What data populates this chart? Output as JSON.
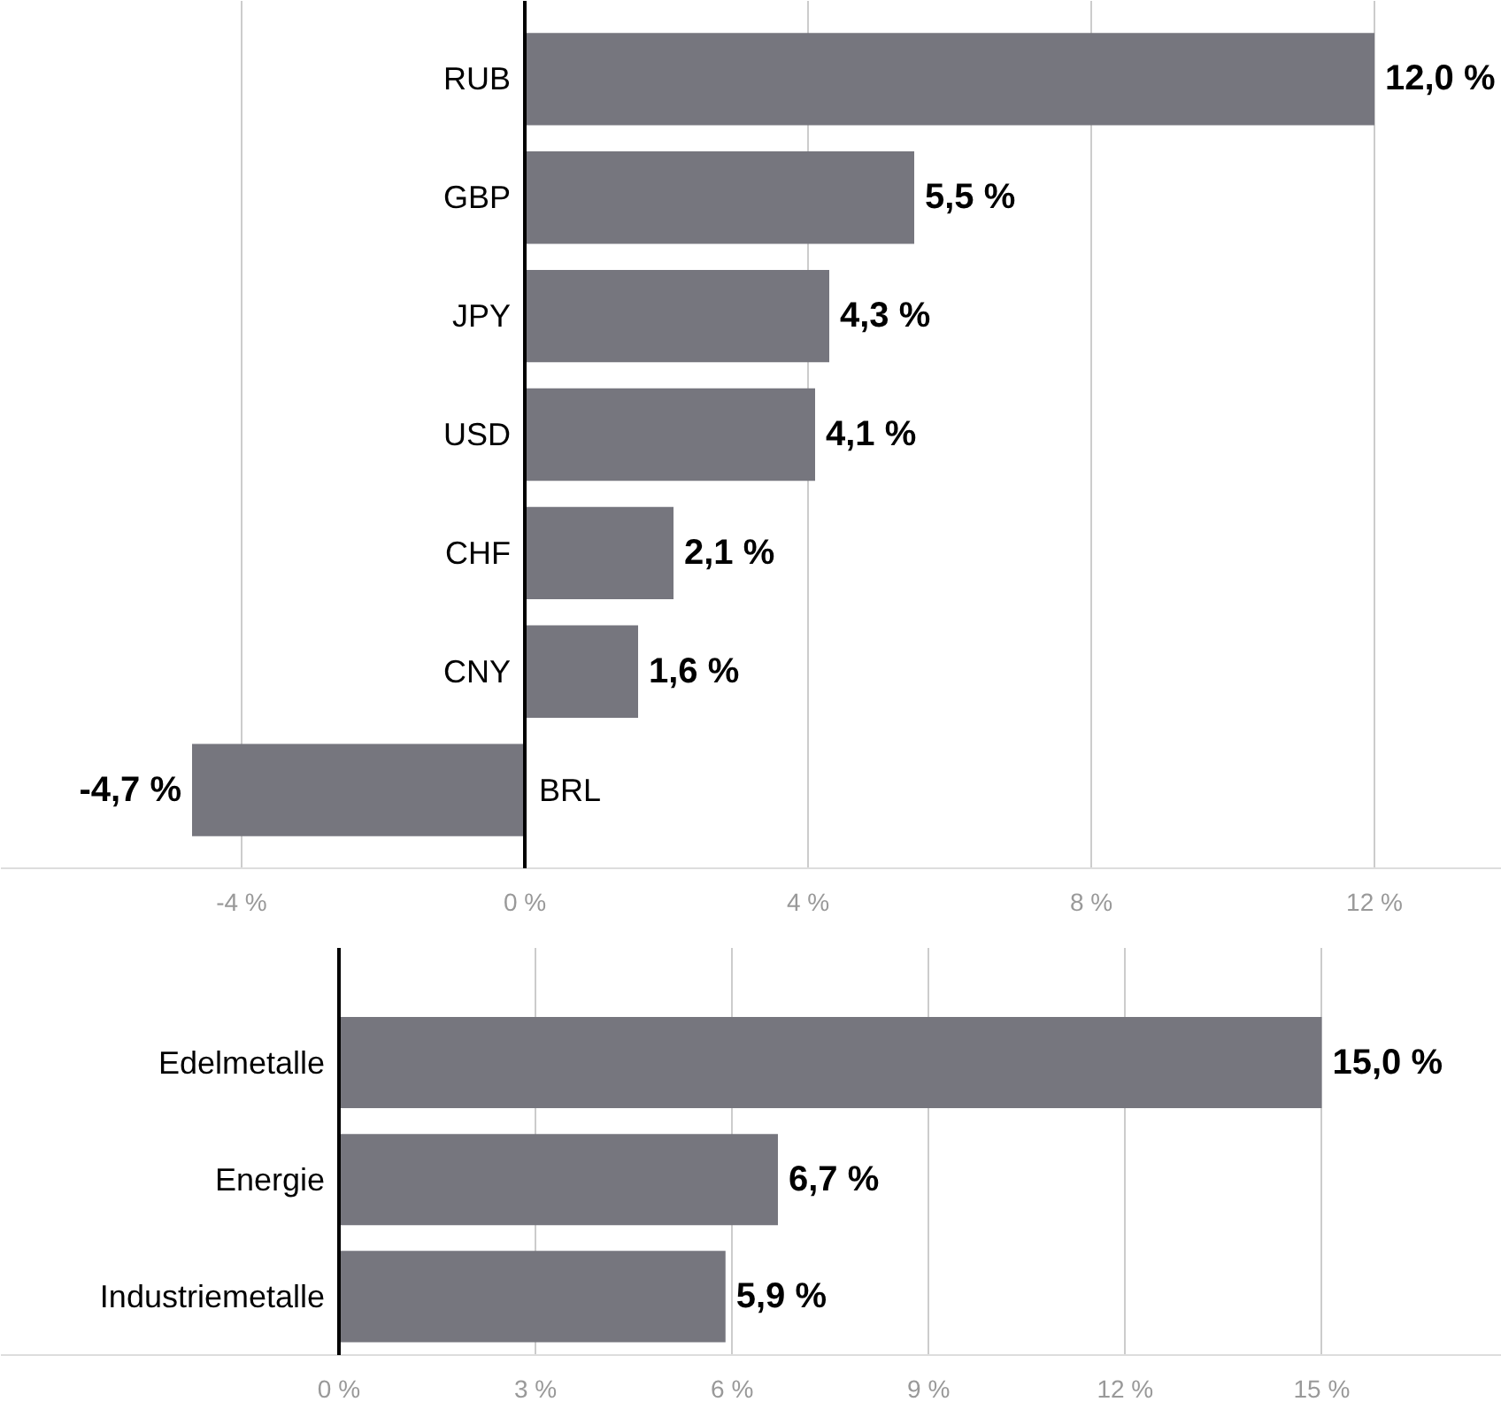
{
  "chart_data": [
    {
      "type": "bar",
      "orientation": "horizontal",
      "categories": [
        "RUB",
        "GBP",
        "JPY",
        "USD",
        "CHF",
        "CNY",
        "BRL"
      ],
      "series": [
        {
          "color": "#76767e",
          "values": [
            12.0,
            5.5,
            4.3,
            4.1,
            2.1,
            1.6,
            -4.7
          ],
          "value_labels": [
            "12,0 %",
            "5,5 %",
            "4,3 %",
            "4,1 %",
            "2,1 %",
            "1,6 %",
            "-4,7 %"
          ]
        }
      ],
      "xlim": [
        -7.4,
        13.8
      ],
      "xticks": [
        {
          "value": -4,
          "label": "-4 %"
        },
        {
          "value": 0,
          "label": "0 %"
        },
        {
          "value": 4,
          "label": "4 %"
        },
        {
          "value": 8,
          "label": "8 %"
        },
        {
          "value": 12,
          "label": "12 %"
        }
      ],
      "grid": "x"
    },
    {
      "type": "bar",
      "orientation": "horizontal",
      "categories": [
        "Edelmetalle",
        "Energie",
        "Industriemetalle"
      ],
      "series": [
        {
          "color": "#76767e",
          "values": [
            15.0,
            6.7,
            5.9
          ],
          "value_labels": [
            "15,0 %",
            "6,7 %",
            "5,9 %"
          ]
        }
      ],
      "xlim": [
        -5.16,
        17.75
      ],
      "xticks": [
        {
          "value": 0,
          "label": "0 %"
        },
        {
          "value": 3,
          "label": "3 %"
        },
        {
          "value": 6,
          "label": "6 %"
        },
        {
          "value": 9,
          "label": "9 %"
        },
        {
          "value": 12,
          "label": "12 %"
        },
        {
          "value": 15,
          "label": "15 %"
        }
      ],
      "grid": "x"
    }
  ]
}
